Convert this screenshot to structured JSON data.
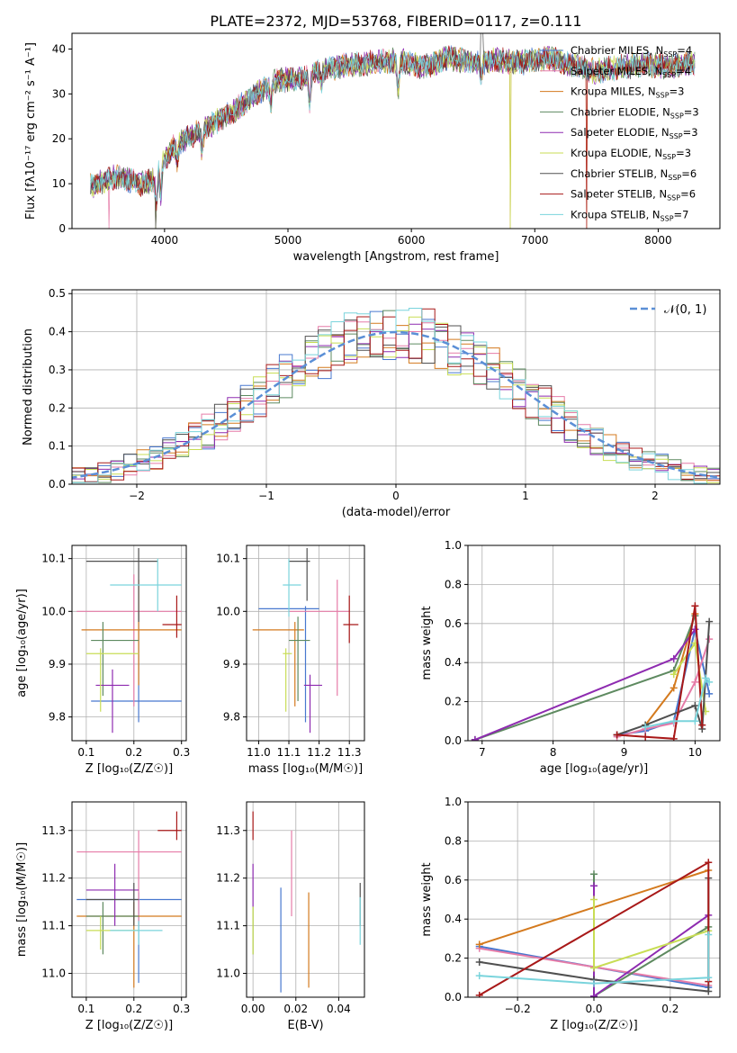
{
  "figure_title": "PLATE=2372, MJD=53768, FIBERID=0117, z=0.111",
  "models": [
    {
      "label": "Chabrier MILES, N",
      "n": "=4",
      "color": "#4878cf"
    },
    {
      "label": "Salpeter MILES, N",
      "n": "=4",
      "color": "#e67ca8"
    },
    {
      "label": "Kroupa MILES, N",
      "n": "=3",
      "color": "#d47a1e"
    },
    {
      "label": "Chabrier ELODIE, N",
      "n": "=3",
      "color": "#5e8a60"
    },
    {
      "label": "Salpeter ELODIE, N",
      "n": "=3",
      "color": "#8e2bb0"
    },
    {
      "label": "Kroupa ELODIE, N",
      "n": "=3",
      "color": "#c8dd55"
    },
    {
      "label": "Chabrier STELIB, N",
      "n": "=6",
      "color": "#505050"
    },
    {
      "label": "Salpeter STELIB, N",
      "n": "=6",
      "color": "#a81818"
    },
    {
      "label": "Kroupa STELIB, N",
      "n": "=7",
      "color": "#7ad4dc"
    }
  ],
  "ssp_subscript": "SSP",
  "chart_data": [
    {
      "id": "spectrum",
      "type": "line",
      "xlabel": "wavelength [Angstrom, rest frame]",
      "ylabel": "Flux [fλ10⁻¹⁷ erg cm⁻² s⁻¹ A⁻¹]",
      "xlim": [
        3250,
        8500
      ],
      "ylim": [
        0,
        43.5
      ],
      "xticks": [
        4000,
        5000,
        6000,
        7000,
        8000
      ],
      "yticks": [
        0,
        10,
        20,
        30,
        40
      ],
      "x_range": [
        3400,
        8300
      ],
      "continuum": [
        [
          3400,
          9.5
        ],
        [
          3600,
          11.5
        ],
        [
          3700,
          11
        ],
        [
          3800,
          10
        ],
        [
          3900,
          10.5
        ],
        [
          3950,
          14
        ],
        [
          4100,
          19
        ],
        [
          4300,
          22
        ],
        [
          4500,
          25
        ],
        [
          4700,
          29
        ],
        [
          4900,
          33
        ],
        [
          5100,
          33.5
        ],
        [
          5300,
          35.5
        ],
        [
          5500,
          36.5
        ],
        [
          5700,
          37
        ],
        [
          5900,
          37.5
        ],
        [
          6100,
          36
        ],
        [
          6300,
          38
        ],
        [
          6500,
          37
        ],
        [
          6700,
          37.5
        ],
        [
          6900,
          37
        ],
        [
          7100,
          38
        ],
        [
          7300,
          36.5
        ],
        [
          7500,
          35
        ],
        [
          7700,
          36
        ],
        [
          7900,
          36.5
        ],
        [
          8100,
          36
        ],
        [
          8300,
          37
        ]
      ],
      "absorption_lines": [
        [
          3934,
          8
        ],
        [
          3969,
          7
        ],
        [
          4102,
          4
        ],
        [
          4304,
          5
        ],
        [
          4861,
          4
        ],
        [
          5175,
          6
        ],
        [
          5270,
          3
        ],
        [
          5893,
          7
        ],
        [
          6563,
          3
        ]
      ],
      "dropouts": [
        {
          "model": "Salpeter MILES",
          "wavelength": 3550
        },
        {
          "model": "Kroupa ELODIE",
          "wavelength": 3930
        },
        {
          "model": "Chabrier STELIB",
          "wavelength": 3930
        },
        {
          "model": "Kroupa ELODIE",
          "wavelength": 6800
        },
        {
          "model": "Kroupa MILES",
          "wavelength": 6800
        },
        {
          "model": "Salpeter STELIB",
          "wavelength": 7420
        },
        {
          "model": "Kroupa MILES",
          "wavelength": 7420
        }
      ],
      "peak": {
        "wavelength": 6570,
        "flux": 43.5
      }
    },
    {
      "id": "residuals",
      "type": "histogram",
      "xlabel": "(data-model)/error",
      "ylabel": "Normed distribution",
      "xlim": [
        -2.5,
        2.5
      ],
      "ylim": [
        0,
        0.51
      ],
      "xticks": [
        -2,
        -1,
        0,
        1,
        2
      ],
      "yticks": [
        0,
        0.1,
        0.2,
        0.3,
        0.4,
        0.5
      ],
      "bin_width": 0.1,
      "reference_label": "𝒩(0, 1)",
      "reference_color": "#5b8fd6",
      "legend_position": "top-right",
      "grid": true
    },
    {
      "id": "age_vs_Z",
      "type": "errorbar",
      "xlabel": "Z [log₁₀(Z/Z☉)]",
      "ylabel": "age  [log₁₀(age/yr)]",
      "xlim": [
        0.07,
        0.31
      ],
      "ylim": [
        9.755,
        10.125
      ],
      "xticks": [
        0.1,
        0.2,
        0.3
      ],
      "yticks": [
        9.8,
        9.9,
        10.0,
        10.1
      ],
      "points": [
        {
          "x": 0.21,
          "xerr": [
            0.11,
            0.3
          ],
          "y": 9.83,
          "yerr": [
            9.79,
            10.0
          ]
        },
        {
          "x": 0.2,
          "xerr": [
            0.08,
            0.3
          ],
          "y": 10.0,
          "yerr": [
            9.82,
            10.07
          ]
        },
        {
          "x": 0.21,
          "xerr": [
            0.09,
            0.3
          ],
          "y": 9.965,
          "yerr": [
            9.86,
            10.06
          ]
        },
        {
          "x": 0.135,
          "xerr": [
            0.11,
            0.21
          ],
          "y": 9.945,
          "yerr": [
            9.84,
            9.98
          ]
        },
        {
          "x": 0.155,
          "xerr": [
            0.12,
            0.19
          ],
          "y": 9.86,
          "yerr": [
            9.77,
            9.89
          ]
        },
        {
          "x": 0.13,
          "xerr": [
            0.1,
            0.21
          ],
          "y": 9.92,
          "yerr": [
            9.81,
            9.93
          ]
        },
        {
          "x": 0.21,
          "xerr": [
            0.1,
            0.25
          ],
          "y": 10.095,
          "yerr": [
            9.98,
            10.12
          ]
        },
        {
          "x": 0.29,
          "xerr": [
            0.26,
            0.3
          ],
          "y": 9.975,
          "yerr": [
            9.95,
            10.03
          ]
        },
        {
          "x": 0.25,
          "xerr": [
            0.15,
            0.3
          ],
          "y": 10.05,
          "yerr": [
            10.0,
            10.1
          ]
        }
      ]
    },
    {
      "id": "age_vs_mass",
      "type": "errorbar",
      "xlabel": "mass [log₁₀(M/M☉)]",
      "ylabel": "",
      "xlim": [
        10.96,
        11.35
      ],
      "ylim": [
        9.755,
        10.125
      ],
      "xticks": [
        11.0,
        11.1,
        11.2,
        11.3
      ],
      "yticks": [
        9.8,
        9.9,
        10.0,
        10.1
      ],
      "points": [
        {
          "x": 11.155,
          "xerr": [
            11.0,
            11.2
          ],
          "y": 10.005,
          "yerr": [
            9.79,
            10.01
          ]
        },
        {
          "x": 11.26,
          "xerr": [
            11.1,
            11.3
          ],
          "y": 10.0,
          "yerr": [
            9.84,
            10.06
          ]
        },
        {
          "x": 11.12,
          "xerr": [
            10.98,
            11.15
          ],
          "y": 9.965,
          "yerr": [
            9.82,
            9.98
          ]
        },
        {
          "x": 11.13,
          "xerr": [
            11.1,
            11.17
          ],
          "y": 9.945,
          "yerr": [
            9.83,
            9.99
          ]
        },
        {
          "x": 11.17,
          "xerr": [
            11.15,
            11.21
          ],
          "y": 9.86,
          "yerr": [
            9.77,
            9.88
          ]
        },
        {
          "x": 11.09,
          "xerr": [
            11.08,
            11.11
          ],
          "y": 9.92,
          "yerr": [
            9.81,
            9.93
          ]
        },
        {
          "x": 11.16,
          "xerr": [
            11.1,
            11.17
          ],
          "y": 10.095,
          "yerr": [
            10.02,
            10.12
          ]
        },
        {
          "x": 11.3,
          "xerr": [
            11.28,
            11.33
          ],
          "y": 9.975,
          "yerr": [
            9.94,
            10.03
          ]
        },
        {
          "x": 11.1,
          "xerr": [
            11.08,
            11.14
          ],
          "y": 10.05,
          "yerr": [
            9.99,
            10.1
          ]
        }
      ]
    },
    {
      "id": "weights_vs_age",
      "type": "line",
      "xlabel": "age  [log₁₀(age/yr)]",
      "ylabel": "mass weight",
      "xlim": [
        6.8,
        10.35
      ],
      "ylim": [
        0,
        1.0
      ],
      "xticks": [
        7,
        8,
        9,
        10
      ],
      "yticks": [
        0,
        0.2,
        0.4,
        0.6,
        0.8,
        1.0
      ],
      "series": [
        {
          "model": "Chabrier MILES",
          "x": [
            8.9,
            9.3,
            9.7,
            10.0,
            10.2
          ],
          "y": [
            0.03,
            0.05,
            0.1,
            0.57,
            0.24
          ]
        },
        {
          "model": "Salpeter MILES",
          "x": [
            8.9,
            9.3,
            9.7,
            10.0,
            10.2
          ],
          "y": [
            0.02,
            0.06,
            0.09,
            0.3,
            0.52
          ]
        },
        {
          "model": "Kroupa MILES",
          "x": [
            9.3,
            9.7,
            10.0
          ],
          "y": [
            0.08,
            0.27,
            0.65
          ]
        },
        {
          "model": "Chabrier ELODIE",
          "x": [
            6.9,
            9.7,
            10.0
          ],
          "y": [
            0.005,
            0.36,
            0.64
          ]
        },
        {
          "model": "Salpeter ELODIE",
          "x": [
            6.9,
            9.7,
            10.0
          ],
          "y": [
            0.005,
            0.42,
            0.57
          ]
        },
        {
          "model": "Kroupa ELODIE",
          "x": [
            9.7,
            10.0,
            10.15
          ],
          "y": [
            0.34,
            0.5,
            0.15
          ]
        },
        {
          "model": "Chabrier STELIB",
          "x": [
            8.9,
            9.3,
            10.0,
            10.1,
            10.2
          ],
          "y": [
            0.03,
            0.08,
            0.18,
            0.06,
            0.61
          ]
        },
        {
          "model": "Salpeter STELIB",
          "x": [
            8.9,
            9.3,
            9.7,
            10.0,
            10.1
          ],
          "y": [
            0.03,
            0.02,
            0.01,
            0.69,
            0.08
          ]
        },
        {
          "model": "Kroupa STELIB",
          "x": [
            9.3,
            9.7,
            10.0,
            10.15,
            10.2
          ],
          "y": [
            0.07,
            0.1,
            0.1,
            0.32,
            0.3
          ]
        }
      ]
    },
    {
      "id": "mass_vs_Z",
      "type": "errorbar",
      "xlabel": "Z [log₁₀(Z/Z☉)]",
      "ylabel": "mass [log₁₀(M/M☉)]",
      "xlim": [
        0.07,
        0.31
      ],
      "ylim": [
        10.95,
        11.36
      ],
      "xticks": [
        0.1,
        0.2,
        0.3
      ],
      "yticks": [
        11.0,
        11.1,
        11.2,
        11.3
      ],
      "points": [
        {
          "x": 0.21,
          "xerr": [
            0.08,
            0.3
          ],
          "y": 11.155,
          "yerr": [
            10.98,
            11.17
          ]
        },
        {
          "x": 0.21,
          "xerr": [
            0.08,
            0.3
          ],
          "y": 11.255,
          "yerr": [
            11.1,
            11.3
          ]
        },
        {
          "x": 0.2,
          "xerr": [
            0.08,
            0.3
          ],
          "y": 11.12,
          "yerr": [
            10.97,
            11.15
          ]
        },
        {
          "x": 0.135,
          "xerr": [
            0.1,
            0.21
          ],
          "y": 11.12,
          "yerr": [
            11.04,
            11.15
          ]
        },
        {
          "x": 0.16,
          "xerr": [
            0.1,
            0.21
          ],
          "y": 11.175,
          "yerr": [
            11.1,
            11.23
          ]
        },
        {
          "x": 0.13,
          "xerr": [
            0.1,
            0.21
          ],
          "y": 11.09,
          "yerr": [
            11.05,
            11.12
          ]
        },
        {
          "x": 0.2,
          "xerr": [
            0.1,
            0.21
          ],
          "y": 11.155,
          "yerr": [
            11.1,
            11.19
          ]
        },
        {
          "x": 0.29,
          "xerr": [
            0.25,
            0.3
          ],
          "y": 11.3,
          "yerr": [
            11.28,
            11.34
          ]
        },
        {
          "x": 0.21,
          "xerr": [
            0.15,
            0.26
          ],
          "y": 11.09,
          "yerr": [
            11.06,
            11.11
          ]
        }
      ]
    },
    {
      "id": "mass_vs_EBV",
      "type": "errorbar",
      "xlabel": "E(B-V)",
      "ylabel": "",
      "xlim": [
        -0.003,
        0.052
      ],
      "ylim": [
        10.95,
        11.36
      ],
      "xticks": [
        0.0,
        0.02,
        0.04
      ],
      "yticks": [
        11.0,
        11.1,
        11.2,
        11.3
      ],
      "points": [
        {
          "x": 0.013,
          "y": 11.07,
          "yerr": [
            10.96,
            11.18
          ]
        },
        {
          "x": 0.018,
          "y": 11.21,
          "yerr": [
            11.12,
            11.3
          ]
        },
        {
          "x": 0.026,
          "y": 11.07,
          "yerr": [
            10.97,
            11.17
          ]
        },
        {
          "x": 0.0,
          "y": 11.1,
          "yerr": [
            11.04,
            11.14
          ]
        },
        {
          "x": 0.0,
          "y": 11.18,
          "yerr": [
            11.14,
            11.23
          ]
        },
        {
          "x": 0.0,
          "y": 11.09,
          "yerr": [
            11.04,
            11.14
          ]
        },
        {
          "x": 0.05,
          "y": 11.15,
          "yerr": [
            11.1,
            11.19
          ]
        },
        {
          "x": 0.0,
          "y": 11.3,
          "yerr": [
            11.28,
            11.34
          ]
        },
        {
          "x": 0.05,
          "y": 11.1,
          "yerr": [
            11.06,
            11.16
          ]
        }
      ]
    },
    {
      "id": "weights_vs_Z",
      "type": "line",
      "xlabel": "Z [log₁₀(Z/Z☉)]",
      "ylabel": "mass weight",
      "xlim": [
        -0.33,
        0.33
      ],
      "ylim": [
        0,
        1.0
      ],
      "xticks": [
        -0.2,
        0.0,
        0.2
      ],
      "yticks": [
        0,
        0.2,
        0.4,
        0.6,
        0.8,
        1.0
      ],
      "series": [
        {
          "model": "Chabrier MILES",
          "x": [
            -0.3,
            0.3
          ],
          "y": [
            0.26,
            0.05
          ]
        },
        {
          "model": "Salpeter MILES",
          "x": [
            -0.3,
            0.3
          ],
          "y": [
            0.25,
            0.06
          ]
        },
        {
          "model": "Kroupa MILES",
          "x": [
            -0.3,
            0.3
          ],
          "y": [
            0.27,
            0.65
          ]
        },
        {
          "model": "Chabrier ELODIE",
          "x": [
            0.0,
            0.0,
            0.3
          ],
          "y": [
            0.63,
            0.005,
            0.36
          ]
        },
        {
          "model": "Salpeter ELODIE",
          "x": [
            0.0,
            0.0,
            0.3
          ],
          "y": [
            0.57,
            0.005,
            0.42
          ]
        },
        {
          "model": "Kroupa ELODIE",
          "x": [
            0.0,
            0.0,
            0.3
          ],
          "y": [
            0.5,
            0.15,
            0.34
          ]
        },
        {
          "model": "Chabrier STELIB",
          "x": [
            -0.3,
            0.0,
            0.3,
            0.3
          ],
          "y": [
            0.18,
            0.09,
            0.03,
            0.61
          ]
        },
        {
          "model": "Salpeter STELIB",
          "x": [
            -0.3,
            0.3,
            0.3
          ],
          "y": [
            0.01,
            0.69,
            0.08
          ]
        },
        {
          "model": "Kroupa STELIB",
          "x": [
            -0.3,
            0.0,
            0.3,
            0.3
          ],
          "y": [
            0.11,
            0.07,
            0.1,
            0.32
          ]
        }
      ]
    }
  ]
}
